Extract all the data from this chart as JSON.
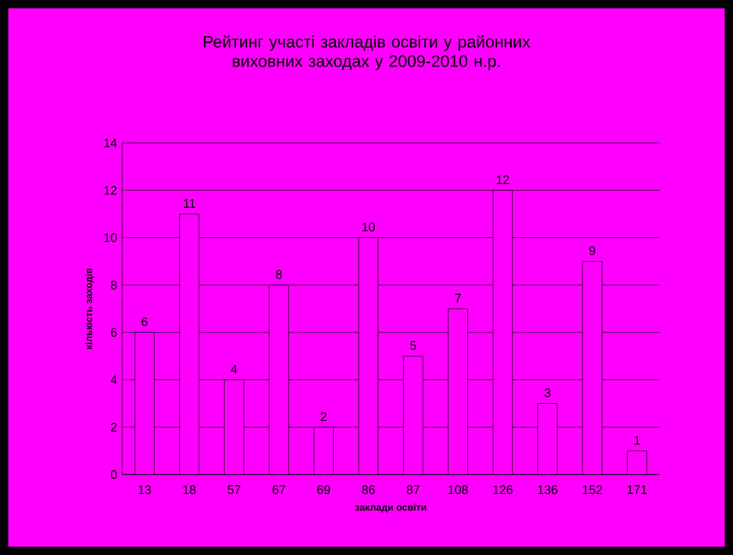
{
  "chart_data": {
    "type": "bar",
    "title": "Рейтинг участі закладів освіти у районних виховних заходах у 2009-2010 н.р.",
    "xlabel": "заклади освіти",
    "ylabel": "кількість заходів",
    "categories": [
      "13",
      "18",
      "57",
      "67",
      "69",
      "86",
      "87",
      "108",
      "126",
      "136",
      "152",
      "171"
    ],
    "values": [
      6,
      11,
      4,
      8,
      2,
      10,
      5,
      7,
      12,
      3,
      9,
      1
    ],
    "color": "#ff00ff",
    "ylim": [
      0,
      14
    ],
    "yticks": [
      0,
      2,
      4,
      6,
      8,
      10,
      12,
      14
    ],
    "grid": "y",
    "data_labels": true
  }
}
